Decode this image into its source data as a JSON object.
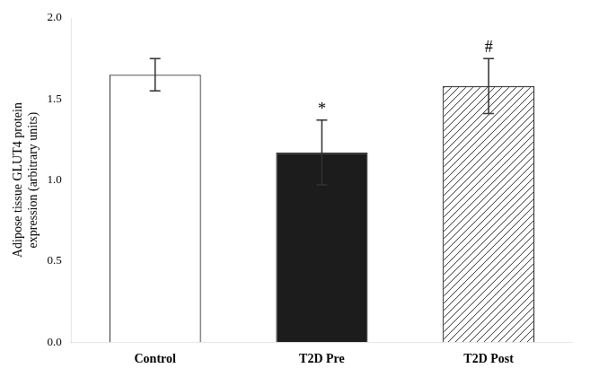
{
  "chart_data": {
    "type": "bar",
    "categories": [
      "Control",
      "T2D Pre",
      "T2D Post"
    ],
    "values": [
      1.65,
      1.17,
      1.58
    ],
    "errors": [
      0.1,
      0.2,
      0.17
    ],
    "colors": [
      "#ffffff",
      "#1c1c1c",
      "#ffffff"
    ],
    "ylabel": "Adipose tissue GLUT4 protein\nexpression (arbitrary units)",
    "ylim": [
      0.0,
      2.0
    ],
    "yticks": [
      {
        "value": 0.0,
        "label": "0.0"
      },
      0.5,
      {
        "value": 1.0,
        "label": "1.0"
      },
      1.5,
      {
        "value": 2.0,
        "label": "2.0"
      }
    ],
    "annotations": [
      null,
      "*",
      "#"
    ],
    "grid": false
  }
}
